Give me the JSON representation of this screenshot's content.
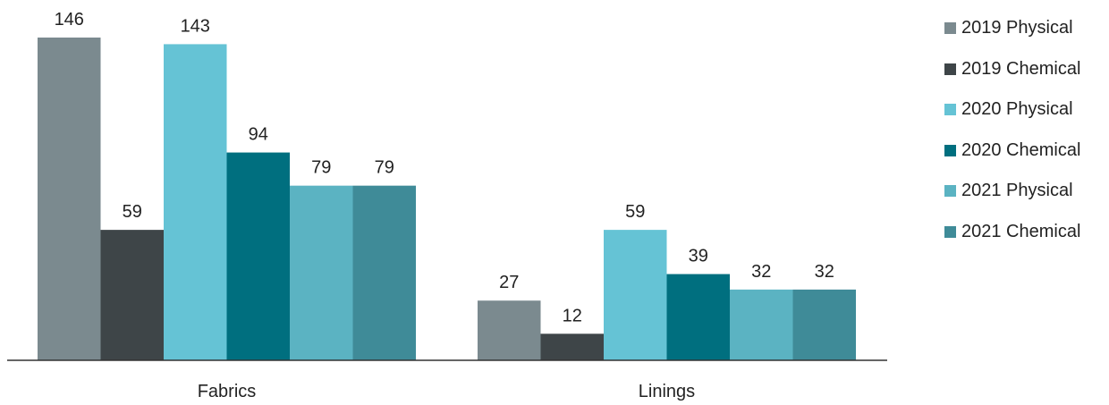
{
  "chart_data": {
    "type": "bar",
    "categories": [
      "Fabrics",
      "Linings"
    ],
    "series": [
      {
        "name": "2019 Physical",
        "color": "#7b8a8f",
        "values": [
          146,
          27
        ]
      },
      {
        "name": "2019 Chemical",
        "color": "#3e4548",
        "values": [
          59,
          12
        ]
      },
      {
        "name": "2020 Physical",
        "color": "#65c3d5",
        "values": [
          143,
          59
        ]
      },
      {
        "name": "2020 Chemical",
        "color": "#006f7f",
        "values": [
          94,
          39
        ]
      },
      {
        "name": "2021 Physical",
        "color": "#5bb3c2",
        "values": [
          79,
          32
        ]
      },
      {
        "name": "2021 Chemical",
        "color": "#3f8b98",
        "values": [
          79,
          32
        ]
      }
    ],
    "ylim": [
      0,
      146
    ],
    "grid": false,
    "legend": "right",
    "title": "",
    "xlabel": "",
    "ylabel": ""
  }
}
